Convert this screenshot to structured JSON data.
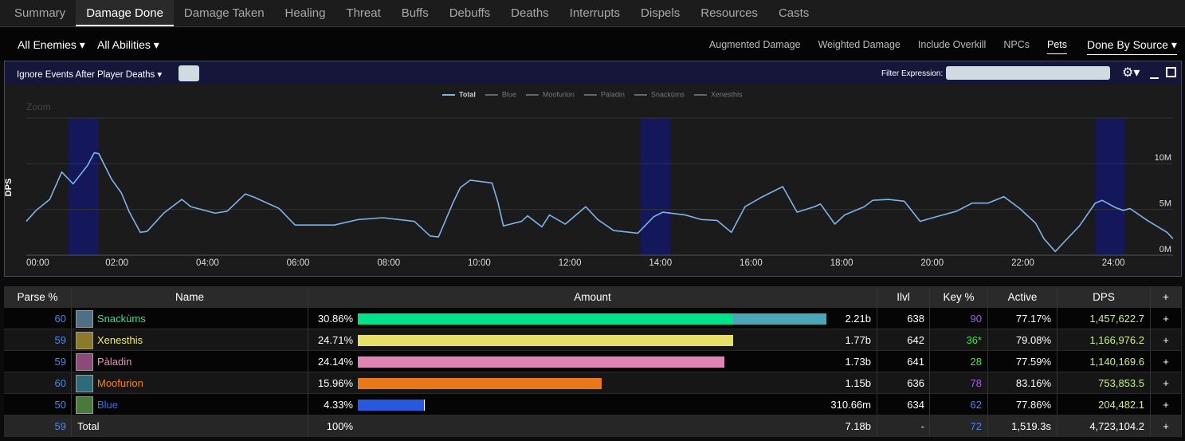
{
  "tabs": [
    "Summary",
    "Damage Done",
    "Damage Taken",
    "Healing",
    "Threat",
    "Buffs",
    "Debuffs",
    "Deaths",
    "Interrupts",
    "Dispels",
    "Resources",
    "Casts"
  ],
  "active_tab": 1,
  "filters_left": [
    "All Enemies",
    "All Abilities"
  ],
  "options_right": [
    "Augmented Damage",
    "Weighted Damage",
    "Include Overkill",
    "NPCs",
    "Pets"
  ],
  "active_option": 4,
  "source_menu": "Done By Source",
  "panel": {
    "death_toggle": "Ignore Events After Player Deaths",
    "filter_label": "Filter Expression:"
  },
  "chart_data": {
    "type": "line",
    "y_label": "DPS",
    "zoom_label": "Zoom",
    "x": [
      0,
      13,
      31,
      47,
      62,
      81,
      90,
      96,
      113,
      126,
      136,
      151,
      160,
      182,
      206,
      218,
      250,
      266,
      290,
      303,
      335,
      356,
      387,
      408,
      440,
      472,
      514,
      535,
      546,
      565,
      575,
      588,
      617,
      625,
      632,
      656,
      664,
      683,
      693,
      714,
      741,
      757,
      778,
      810,
      831,
      843,
      873,
      894,
      915,
      934,
      952,
      973,
      1002,
      1021,
      1044,
      1052,
      1071,
      1084,
      1110,
      1121,
      1142,
      1163,
      1184,
      1205,
      1232,
      1253,
      1274,
      1295,
      1316,
      1337,
      1348,
      1363,
      1372,
      1395,
      1416,
      1425,
      1443,
      1453,
      1462,
      1485,
      1511,
      1519
    ],
    "series": [
      {
        "name": "Total",
        "color": "#7fb2ea",
        "values": [
          3700000,
          4900000,
          6100000,
          9100000,
          7800000,
          9800000,
          11200000,
          11100000,
          8300000,
          6800000,
          4800000,
          2500000,
          2600000,
          4600000,
          6100000,
          5300000,
          4600000,
          4800000,
          6700000,
          6300000,
          5100000,
          3300000,
          3300000,
          3300000,
          3900000,
          4100000,
          3700000,
          2100000,
          2000000,
          5700000,
          7400000,
          8200000,
          7900000,
          5700000,
          3200000,
          3700000,
          4300000,
          3100000,
          4400000,
          3400000,
          5300000,
          3900000,
          2700000,
          2400000,
          4200000,
          4700000,
          4400000,
          3900000,
          3800000,
          2500000,
          5300000,
          6300000,
          7500000,
          4700000,
          5300000,
          5600000,
          3400000,
          4400000,
          5300000,
          6000000,
          6100000,
          5900000,
          3700000,
          4200000,
          4800000,
          5700000,
          5700000,
          6400000,
          5100000,
          3500000,
          1800000,
          400000,
          1200000,
          3200000,
          5700000,
          6000000,
          5200000,
          4900000,
          5100000,
          3800000,
          2500000,
          1800000
        ]
      }
    ],
    "hidden_series": [
      "Blue",
      "Moofurion",
      "Pàladin",
      "Snackùms",
      "Xenesthis"
    ],
    "bands": [
      [
        56,
        96
      ],
      [
        814,
        853
      ],
      [
        1416,
        1455
      ]
    ],
    "band_color": "#14185a",
    "xlim": [
      0,
      1519
    ],
    "xticks": [
      {
        "value": 0,
        "label": "00:00"
      },
      {
        "value": 120,
        "label": "02:00"
      },
      {
        "value": 240,
        "label": "04:00"
      },
      {
        "value": 360,
        "label": "06:00"
      },
      {
        "value": 480,
        "label": "08:00"
      },
      {
        "value": 600,
        "label": "10:00"
      },
      {
        "value": 720,
        "label": "12:00"
      },
      {
        "value": 840,
        "label": "14:00"
      },
      {
        "value": 960,
        "label": "16:00"
      },
      {
        "value": 1080,
        "label": "18:00"
      },
      {
        "value": 1200,
        "label": "20:00"
      },
      {
        "value": 1320,
        "label": "22:00"
      },
      {
        "value": 1440,
        "label": "24:00"
      }
    ],
    "ylim": [
      0,
      15000000
    ],
    "yticks": [
      {
        "value": 0,
        "label": "0M"
      },
      {
        "value": 5000000,
        "label": "5M"
      },
      {
        "value": 10000000,
        "label": "10M"
      }
    ],
    "grid": true
  },
  "table": {
    "columns": [
      "Parse %",
      "Name",
      "Amount",
      "Ilvl",
      "Key %",
      "Active",
      "DPS",
      "+"
    ],
    "rows": [
      {
        "parse": 60,
        "parse_color": "#4b86f0",
        "name": "Snackùms",
        "name_color": "#33e08f",
        "icon_color": "#4f6f86",
        "pct": "30.86%",
        "bar": [
          {
            "value": 1770000000,
            "color": "#00e28a"
          },
          {
            "value": 440000000,
            "color": "#4aa5b5"
          }
        ],
        "amount": {
          "value": 2210000000,
          "label": "2.21b"
        },
        "ilvl": 638,
        "key": 90,
        "key_color": "#a35ef0",
        "active": "77.17%",
        "dps": "1,457,622.7"
      },
      {
        "parse": 59,
        "parse_color": "#4b86f0",
        "name": "Xenesthis",
        "name_color": "#f2ea6b",
        "icon_color": "#8a7a2a",
        "pct": "24.71%",
        "bar": [
          {
            "value": 1770000000,
            "color": "#e6df69"
          }
        ],
        "amount": {
          "value": 1770000000,
          "label": "1.77b"
        },
        "ilvl": 642,
        "key": "36*",
        "key_color": "#3fe84a",
        "active": "79.08%",
        "dps": "1,166,976.2"
      },
      {
        "parse": 59,
        "parse_color": "#4b86f0",
        "name": "Pàladin",
        "name_color": "#f28dbd",
        "icon_color": "#8a4a7a",
        "pct": "24.14%",
        "bar": [
          {
            "value": 1730000000,
            "color": "#e184b5"
          }
        ],
        "amount": {
          "value": 1730000000,
          "label": "1.73b"
        },
        "ilvl": 641,
        "key": 28,
        "key_color": "#3fe84a",
        "active": "77.59%",
        "dps": "1,140,169.6"
      },
      {
        "parse": 60,
        "parse_color": "#4b86f0",
        "name": "Moofurion",
        "name_color": "#ff7d1a",
        "icon_color": "#2f6a7a",
        "pct": "15.96%",
        "bar": [
          {
            "value": 1150000000,
            "color": "#e97818"
          }
        ],
        "amount": {
          "value": 1150000000,
          "label": "1.15b"
        },
        "ilvl": 636,
        "key": 78,
        "key_color": "#a35ef0",
        "active": "83.16%",
        "dps": "753,853.5"
      },
      {
        "parse": 50,
        "parse_color": "#4b86f0",
        "name": "Blue",
        "name_color": "#3e6cf0",
        "icon_color": "#4a7a3a",
        "pct": "4.33%",
        "bar": [
          {
            "value": 310660000,
            "color": "#2858e0"
          },
          {
            "value": 6000000,
            "color": "#ffffff"
          }
        ],
        "amount": {
          "value": 310660000,
          "label": "310.66m"
        },
        "ilvl": 634,
        "key": 62,
        "key_color": "#4b86f0",
        "active": "77.86%",
        "dps": "204,482.1"
      }
    ],
    "total": {
      "parse": 59,
      "name": "Total",
      "pct": "100%",
      "amount": "7.18b",
      "ilvl": "-",
      "key": 72,
      "active": "1,519.3s",
      "dps": "4,723,104.2"
    }
  }
}
